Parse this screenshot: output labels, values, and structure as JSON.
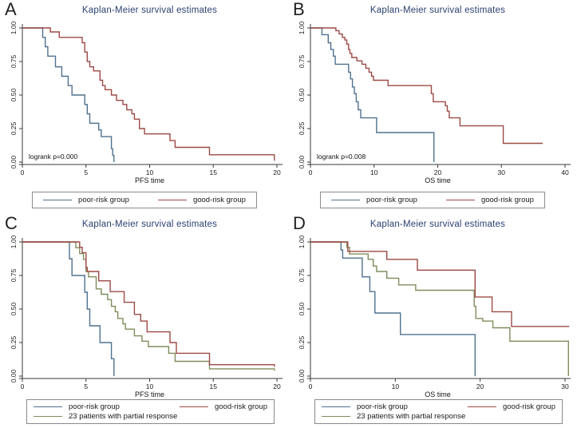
{
  "figure": {
    "background": "#ffffff"
  },
  "colors": {
    "poor": "#4f718f",
    "good": "#9d4a45",
    "partial": "#7f8d5c",
    "title": "#2b4170",
    "axis": "#3a3a3a",
    "text": "#1a1a1a",
    "legend_border": "#8a8a8a"
  },
  "chart_data": [
    {
      "panel": "A",
      "type": "line",
      "step": true,
      "title": "Kaplan-Meier survival estimates",
      "xlabel": "PFS time",
      "ylabel": "",
      "annotation": "logrank p=0.000",
      "xlim": [
        0,
        20
      ],
      "ylim": [
        0,
        1
      ],
      "x_ticks": [
        0,
        5,
        10,
        15,
        20
      ],
      "y_ticks": [
        0,
        0.25,
        0.5,
        0.75,
        1
      ],
      "y_tick_labels": [
        "0.00",
        "0.25",
        "0.50",
        "0.75",
        "1.00"
      ],
      "grid": false,
      "legend_position": "bottom",
      "legend_rows": [
        [
          0,
          1
        ]
      ],
      "series": [
        {
          "key": "poor",
          "name": "poor-risk group",
          "points": [
            [
              0,
              1
            ],
            [
              1.6,
              0.93
            ],
            [
              1.8,
              0.86
            ],
            [
              2.0,
              0.79
            ],
            [
              2.6,
              0.71
            ],
            [
              3.1,
              0.64
            ],
            [
              3.6,
              0.57
            ],
            [
              3.9,
              0.5
            ],
            [
              4.9,
              0.43
            ],
            [
              5.1,
              0.36
            ],
            [
              5.3,
              0.29
            ],
            [
              6.0,
              0.24
            ],
            [
              6.2,
              0.19
            ],
            [
              7.0,
              0.1
            ],
            [
              7.1,
              0.05
            ],
            [
              7.2,
              0
            ]
          ]
        },
        {
          "key": "good",
          "name": "good-risk group",
          "points": [
            [
              0,
              1
            ],
            [
              2.2,
              0.97
            ],
            [
              2.9,
              0.93
            ],
            [
              4.7,
              0.89
            ],
            [
              4.9,
              0.82
            ],
            [
              5.1,
              0.75
            ],
            [
              5.3,
              0.71
            ],
            [
              5.6,
              0.68
            ],
            [
              6.1,
              0.61
            ],
            [
              6.3,
              0.57
            ],
            [
              6.5,
              0.54
            ],
            [
              7.0,
              0.5
            ],
            [
              7.4,
              0.46
            ],
            [
              7.9,
              0.43
            ],
            [
              8.2,
              0.39
            ],
            [
              8.6,
              0.36
            ],
            [
              8.8,
              0.32
            ],
            [
              9.2,
              0.25
            ],
            [
              9.6,
              0.21
            ],
            [
              11.6,
              0.16
            ],
            [
              12.0,
              0.11
            ],
            [
              14.7,
              0.055
            ],
            [
              19.8,
              0.01
            ]
          ]
        }
      ]
    },
    {
      "panel": "B",
      "type": "line",
      "step": true,
      "title": "Kaplan-Meier survival estimates",
      "xlabel": "OS time",
      "ylabel": "",
      "annotation": "logrank p=0.008",
      "xlim": [
        0,
        40
      ],
      "ylim": [
        0,
        1
      ],
      "x_ticks": [
        0,
        10,
        20,
        30,
        40
      ],
      "y_ticks": [
        0,
        0.25,
        0.5,
        0.75,
        1
      ],
      "y_tick_labels": [
        "0.00",
        "0.25",
        "0.50",
        "0.75",
        "1.00"
      ],
      "grid": false,
      "legend_position": "bottom",
      "legend_rows": [
        [
          0,
          1
        ]
      ],
      "series": [
        {
          "key": "poor",
          "name": "poor-risk group",
          "points": [
            [
              0,
              1
            ],
            [
              1.8,
              0.95
            ],
            [
              2.8,
              0.89
            ],
            [
              3.2,
              0.84
            ],
            [
              3.6,
              0.79
            ],
            [
              3.9,
              0.73
            ],
            [
              6.0,
              0.67
            ],
            [
              6.3,
              0.62
            ],
            [
              6.6,
              0.56
            ],
            [
              6.9,
              0.51
            ],
            [
              7.2,
              0.45
            ],
            [
              7.5,
              0.39
            ],
            [
              7.9,
              0.33
            ],
            [
              10.4,
              0.22
            ],
            [
              19.4,
              0
            ]
          ]
        },
        {
          "key": "good",
          "name": "good-risk group",
          "points": [
            [
              0,
              1
            ],
            [
              4.0,
              0.98
            ],
            [
              4.5,
              0.955
            ],
            [
              5.0,
              0.93
            ],
            [
              5.4,
              0.91
            ],
            [
              5.7,
              0.88
            ],
            [
              6.0,
              0.84
            ],
            [
              6.2,
              0.81
            ],
            [
              6.5,
              0.78
            ],
            [
              7.3,
              0.755
            ],
            [
              8.1,
              0.73
            ],
            [
              8.7,
              0.7
            ],
            [
              9.2,
              0.67
            ],
            [
              9.6,
              0.64
            ],
            [
              9.9,
              0.61
            ],
            [
              12.2,
              0.57
            ],
            [
              19.0,
              0.51
            ],
            [
              19.3,
              0.45
            ],
            [
              21.2,
              0.42
            ],
            [
              21.5,
              0.38
            ],
            [
              21.8,
              0.33
            ],
            [
              23.5,
              0.27
            ],
            [
              30.3,
              0.14
            ],
            [
              36.5,
              0.14
            ]
          ]
        }
      ]
    },
    {
      "panel": "C",
      "type": "line",
      "step": true,
      "title": "Kaplan-Meier survival estimates",
      "xlabel": "PFS time",
      "ylabel": "",
      "xlim": [
        0,
        20
      ],
      "ylim": [
        0,
        1
      ],
      "x_ticks": [
        0,
        5,
        10,
        15,
        20
      ],
      "y_ticks": [
        0,
        0.25,
        0.5,
        0.75,
        1
      ],
      "y_tick_labels": [
        "0.00",
        "0.25",
        "0.50",
        "0.75",
        "1.00"
      ],
      "grid": false,
      "legend_position": "bottom",
      "legend_rows": [
        [
          0,
          2
        ],
        [
          1
        ]
      ],
      "series": [
        {
          "key": "poor",
          "name": "poor-risk group",
          "points": [
            [
              0,
              1
            ],
            [
              3.7,
              0.875
            ],
            [
              3.9,
              0.75
            ],
            [
              4.9,
              0.625
            ],
            [
              5.1,
              0.5
            ],
            [
              5.3,
              0.375
            ],
            [
              6.1,
              0.25
            ],
            [
              7.0,
              0.13
            ],
            [
              7.2,
              0
            ]
          ]
        },
        {
          "key": "partial",
          "name": "23 patients with partial response",
          "points": [
            [
              0,
              1
            ],
            [
              4.2,
              0.957
            ],
            [
              4.5,
              0.913
            ],
            [
              4.8,
              0.87
            ],
            [
              5.0,
              0.78
            ],
            [
              5.2,
              0.74
            ],
            [
              5.8,
              0.65
            ],
            [
              6.2,
              0.61
            ],
            [
              6.7,
              0.57
            ],
            [
              7.0,
              0.52
            ],
            [
              7.3,
              0.48
            ],
            [
              7.5,
              0.43
            ],
            [
              7.9,
              0.39
            ],
            [
              8.1,
              0.35
            ],
            [
              8.8,
              0.3
            ],
            [
              9.4,
              0.26
            ],
            [
              9.9,
              0.22
            ],
            [
              11.5,
              0.17
            ],
            [
              12.0,
              0.11
            ],
            [
              14.7,
              0.054
            ],
            [
              19.8,
              0.04
            ]
          ]
        },
        {
          "key": "good",
          "name": "good-risk group",
          "points": [
            [
              0,
              1
            ],
            [
              4.5,
              0.96
            ],
            [
              4.7,
              0.92
            ],
            [
              5.0,
              0.81
            ],
            [
              5.1,
              0.78
            ],
            [
              6.0,
              0.71
            ],
            [
              6.9,
              0.63
            ],
            [
              8.0,
              0.55
            ],
            [
              8.8,
              0.46
            ],
            [
              9.3,
              0.41
            ],
            [
              9.8,
              0.33
            ],
            [
              11.6,
              0.25
            ],
            [
              12.1,
              0.17
            ],
            [
              14.7,
              0.085
            ],
            [
              19.8,
              0.07
            ]
          ]
        }
      ]
    },
    {
      "panel": "D",
      "type": "line",
      "step": true,
      "title": "Kaplan-Meier survival estimates",
      "xlabel": "OS time",
      "ylabel": "",
      "xlim": [
        0,
        30
      ],
      "ylim": [
        0,
        1
      ],
      "x_ticks": [
        0,
        10,
        20,
        30
      ],
      "y_ticks": [
        0,
        0.25,
        0.5,
        0.75,
        1
      ],
      "y_tick_labels": [
        "0.00",
        "0.25",
        "0.50",
        "0.75",
        "1.00"
      ],
      "grid": false,
      "legend_position": "bottom",
      "legend_rows": [
        [
          0,
          2
        ],
        [
          1
        ]
      ],
      "series": [
        {
          "key": "poor",
          "name": "poor-risk group",
          "points": [
            [
              0,
              1
            ],
            [
              3.6,
              0.94
            ],
            [
              3.8,
              0.88
            ],
            [
              6.1,
              0.74
            ],
            [
              7.0,
              0.63
            ],
            [
              7.6,
              0.47
            ],
            [
              10.6,
              0.31
            ],
            [
              19.4,
              0
            ]
          ]
        },
        {
          "key": "partial",
          "name": "23 patients with partial response",
          "points": [
            [
              0,
              1
            ],
            [
              4.3,
              0.96
            ],
            [
              4.6,
              0.91
            ],
            [
              6.8,
              0.87
            ],
            [
              7.4,
              0.82
            ],
            [
              7.8,
              0.78
            ],
            [
              9.0,
              0.73
            ],
            [
              10.4,
              0.68
            ],
            [
              12.4,
              0.64
            ],
            [
              19.3,
              0.52
            ],
            [
              19.5,
              0.43
            ],
            [
              20.3,
              0.41
            ],
            [
              21.5,
              0.36
            ],
            [
              23.5,
              0.26
            ],
            [
              30.4,
              0
            ]
          ]
        },
        {
          "key": "good",
          "name": "good-risk group",
          "points": [
            [
              0,
              1
            ],
            [
              4.4,
              0.93
            ],
            [
              9.0,
              0.87
            ],
            [
              12.6,
              0.79
            ],
            [
              19.4,
              0.59
            ],
            [
              21.4,
              0.48
            ],
            [
              23.7,
              0.37
            ],
            [
              30.5,
              0.37
            ]
          ]
        }
      ]
    }
  ]
}
